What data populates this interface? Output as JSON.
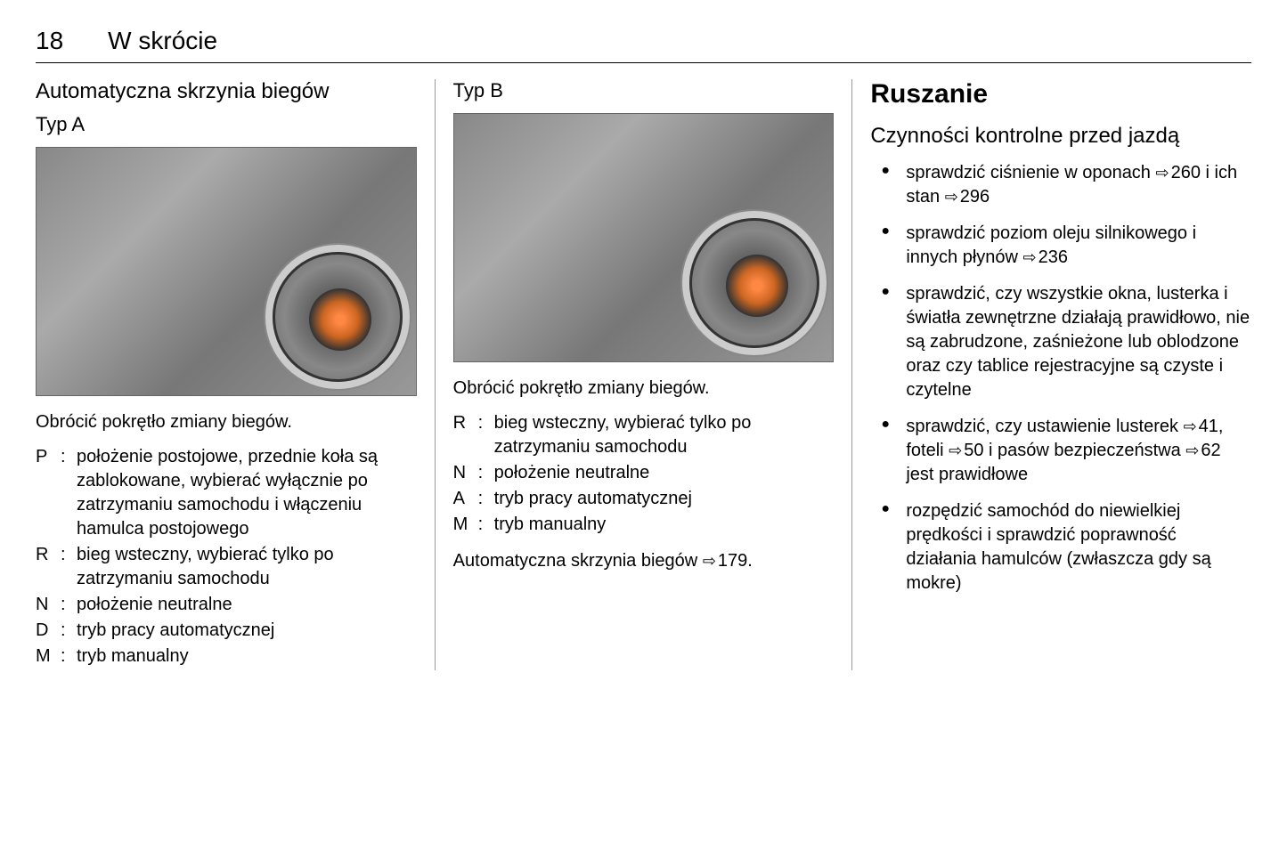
{
  "page_number": "18",
  "chapter": "W skrócie",
  "col1": {
    "heading": "Automatyczna skrzynia biegów",
    "subheading": "Typ A",
    "caption": "Obrócić pokrętło zmiany biegów.",
    "defs": [
      {
        "key": "P",
        "val": "położenie postojowe, przednie koła są zablokowane, wybierać wyłącznie po zatrzymaniu samochodu i włączeniu hamulca postojowego"
      },
      {
        "key": "R",
        "val": "bieg wsteczny, wybierać tylko po zatrzymaniu samochodu"
      },
      {
        "key": "N",
        "val": "położenie neutralne"
      },
      {
        "key": "D",
        "val": "tryb pracy automatycznej"
      },
      {
        "key": "M",
        "val": "tryb manualny"
      }
    ]
  },
  "col2": {
    "subheading": "Typ B",
    "caption": "Obrócić pokrętło zmiany biegów.",
    "defs": [
      {
        "key": "R",
        "val": "bieg wsteczny, wybierać tylko po zatrzymaniu samochodu"
      },
      {
        "key": "N",
        "val": "położenie neutralne"
      },
      {
        "key": "A",
        "val": "tryb pracy automatycznej"
      },
      {
        "key": "M",
        "val": "tryb manualny"
      }
    ],
    "ref_prefix": "Automatyczna skrzynia biegów",
    "ref_page": "179."
  },
  "col3": {
    "main_heading": "Ruszanie",
    "secondary_heading": "Czynności kontrolne przed jazdą",
    "bullets": [
      {
        "parts": [
          "sprawdzić ciśnienie w oponach ",
          {
            "ref": "260"
          },
          " i ich stan ",
          {
            "ref": "296"
          }
        ]
      },
      {
        "parts": [
          "sprawdzić poziom oleju silnikowego i innych płynów ",
          {
            "ref": "236"
          }
        ]
      },
      {
        "parts": [
          "sprawdzić, czy wszystkie okna, lusterka i światła zewnętrzne działają prawidłowo, nie są zabrudzone, zaśnieżone lub oblodzone oraz czy tablice rejestracyjne są czyste i czytelne"
        ]
      },
      {
        "parts": [
          "sprawdzić, czy ustawienie lusterek ",
          {
            "ref": "41"
          },
          ", foteli ",
          {
            "ref": "50"
          },
          " i pasów bezpieczeństwa ",
          {
            "ref": "62"
          },
          " jest prawidłowe"
        ]
      },
      {
        "parts": [
          "rozpędzić samochód do niewielkiej prędkości i sprawdzić poprawność działania hamulców (zwłaszcza gdy są mokre)"
        ]
      }
    ]
  }
}
